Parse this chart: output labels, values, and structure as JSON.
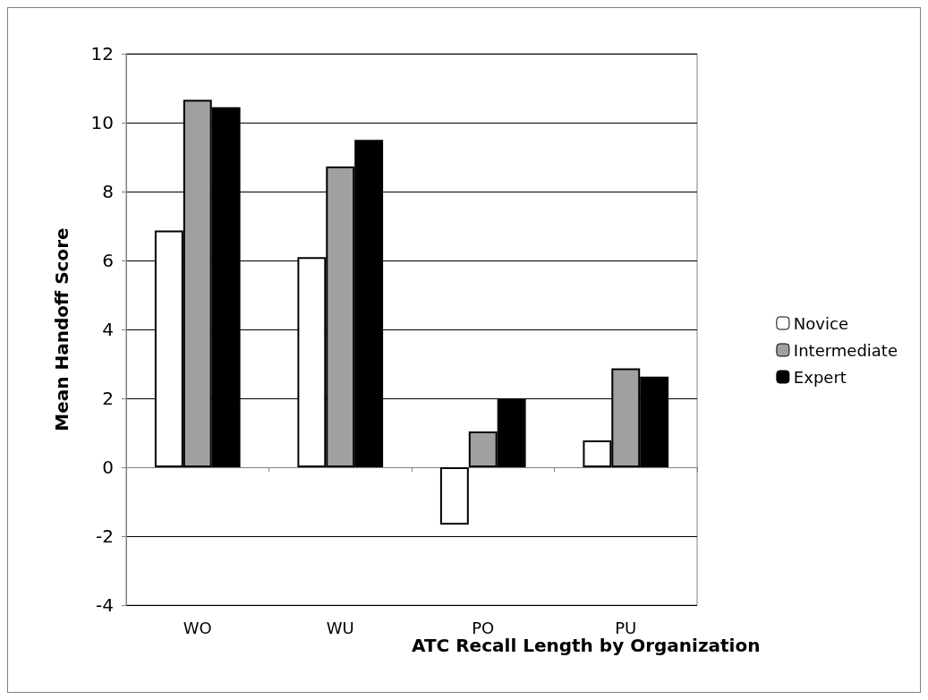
{
  "chart_data": {
    "type": "bar",
    "xlabel": "ATC Recall Length by Organization",
    "ylabel": "Mean Handoff Score",
    "categories": [
      "WO",
      "WU",
      "PO",
      "PU"
    ],
    "series": [
      {
        "name": "Novice",
        "color": "#ffffff",
        "values": [
          6.87,
          6.1,
          -1.66,
          0.78
        ]
      },
      {
        "name": "Intermediate",
        "color": "#a0a0a0",
        "values": [
          10.66,
          8.73,
          1.04,
          2.87
        ]
      },
      {
        "name": "Expert",
        "color": "#000000",
        "values": [
          10.45,
          9.5,
          2.0,
          2.63
        ]
      }
    ],
    "ylim": [
      -4,
      12
    ],
    "yticks": [
      -4,
      -2,
      0,
      2,
      4,
      6,
      8,
      10,
      12
    ],
    "grid": "y",
    "legend": "right"
  }
}
